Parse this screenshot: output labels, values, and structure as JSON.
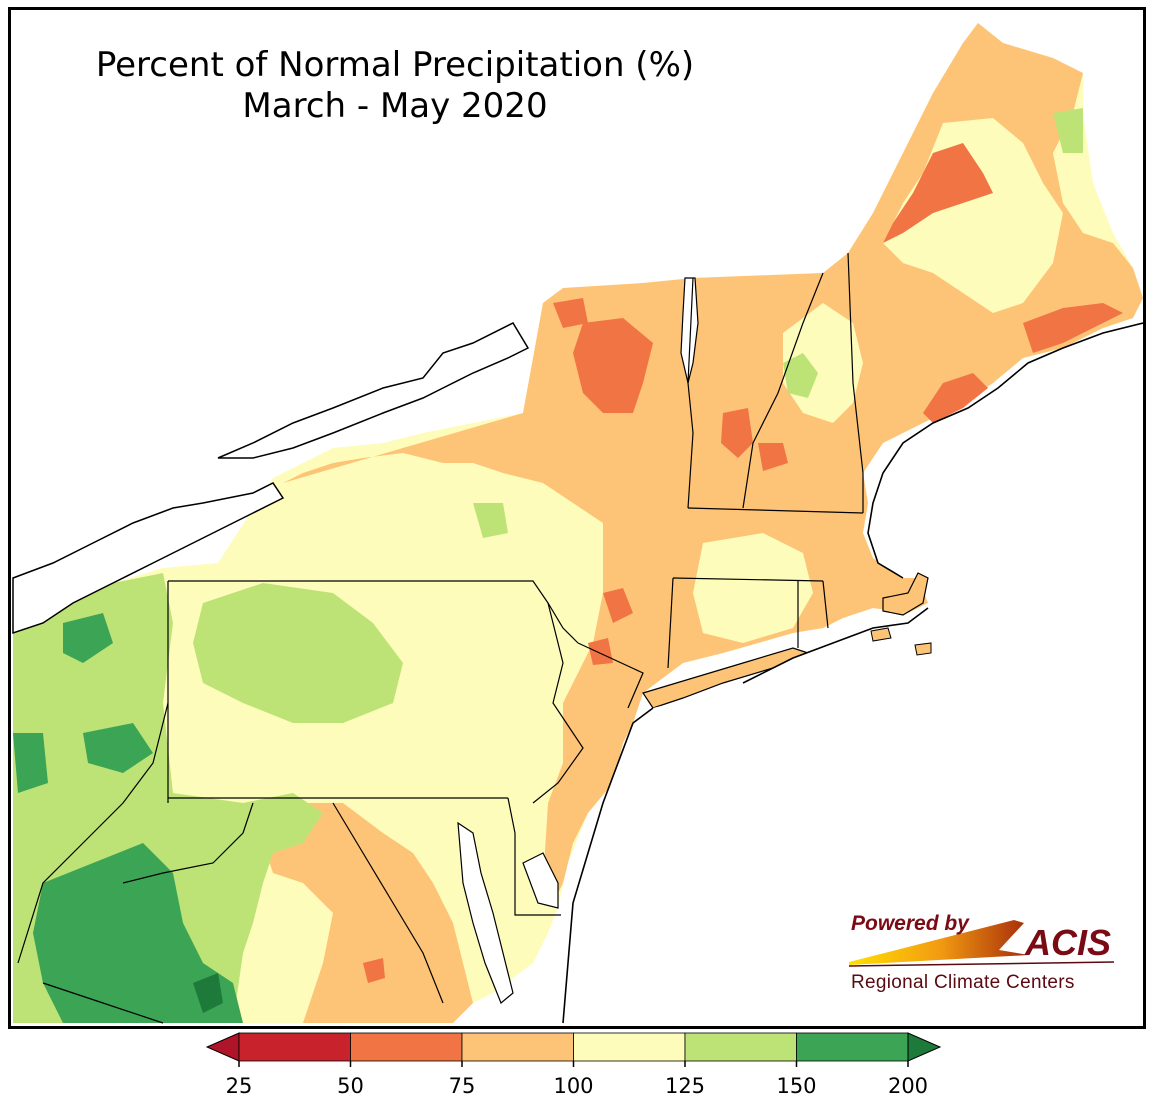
{
  "title": {
    "line1": "Percent of Normal Precipitation (%)",
    "line2": "March - May 2020"
  },
  "logo": {
    "powered_by": "Powered by",
    "name": "ACIS",
    "subtitle": "Regional Climate Centers"
  },
  "legend": {
    "ticks": [
      "25",
      "50",
      "75",
      "100",
      "125",
      "150",
      "200"
    ],
    "bins": [
      {
        "from": 25,
        "to": 50,
        "color": "#c8222d"
      },
      {
        "from": 50,
        "to": 75,
        "color": "#f07444"
      },
      {
        "from": 75,
        "to": 100,
        "color": "#fdc477"
      },
      {
        "from": 100,
        "to": 125,
        "color": "#fefcbb"
      },
      {
        "from": 125,
        "to": 150,
        "color": "#bde377"
      },
      {
        "from": 150,
        "to": 200,
        "color": "#3ca455"
      }
    ],
    "under_color": "#b01428",
    "over_color": "#1d7a3a"
  },
  "colors": {
    "water": "#ffffff",
    "boundary": "#000000",
    "county": "#b8b8b8"
  },
  "map": {
    "region": "Northeast United States",
    "states": [
      "ME",
      "NH",
      "VT",
      "NY",
      "MA",
      "CT",
      "RI",
      "PA",
      "NJ",
      "DE",
      "MD",
      "WV"
    ]
  }
}
